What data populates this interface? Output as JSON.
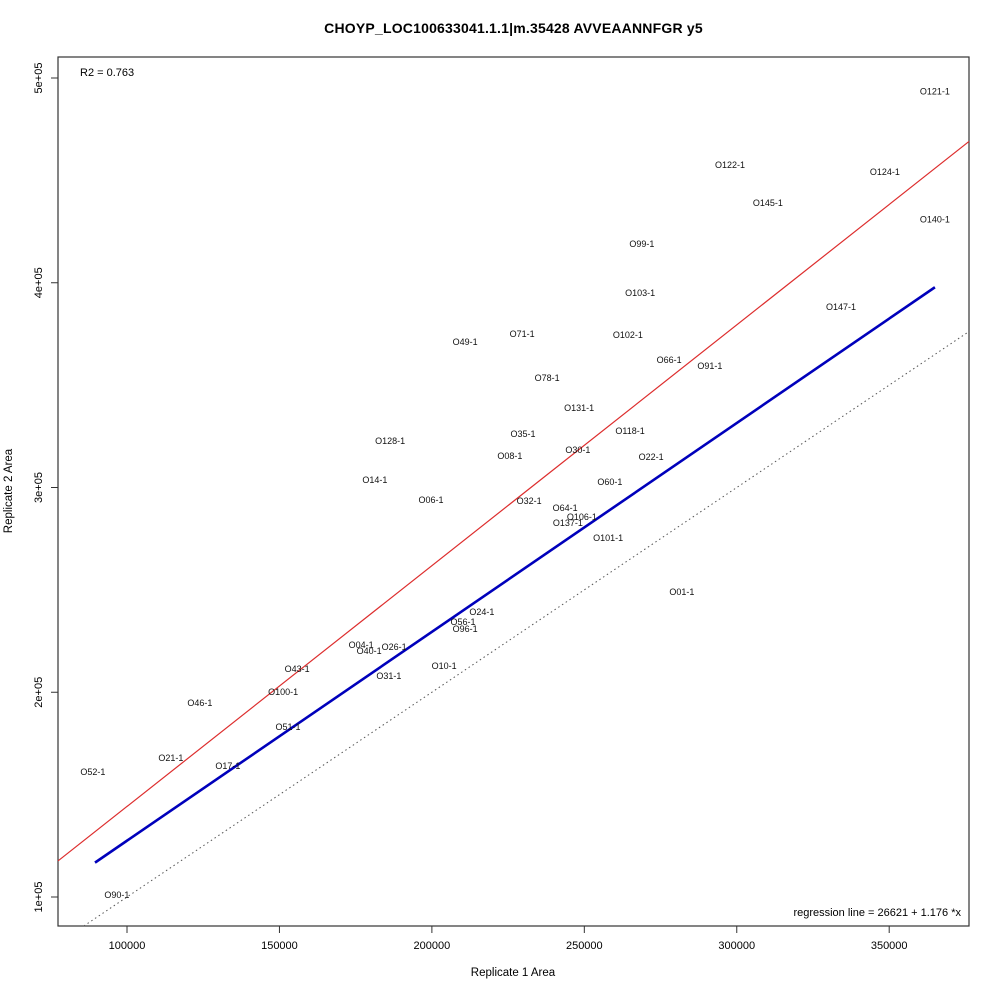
{
  "title": "CHOYP_LOC100633041.1.1|m.35428 AVVEAANNFGR y5",
  "annotations": {
    "r_squared": "R2 = 0.763",
    "regression_note": "regression line = 26621 + 1.176 *x"
  },
  "chart_data": {
    "type": "scatter",
    "title": "CHOYP_LOC100633041.1.1|m.35428 AVVEAANNFGR y5",
    "xlabel": "Replicate 1 Area",
    "ylabel": "Replicate 2 Area",
    "r2": 0.763,
    "regression": {
      "intercept": 26621,
      "slope": 1.176
    },
    "grid": false,
    "legend": "none",
    "xlim": [
      77366,
      376176
    ],
    "ylim": [
      85836,
      510256
    ],
    "x_ticks": {
      "values": [
        100000,
        150000,
        200000,
        250000,
        300000,
        350000
      ],
      "labels": [
        "100000",
        "150000",
        "200000",
        "250000",
        "300000",
        "350000"
      ]
    },
    "y_ticks": {
      "values": [
        100000,
        200000,
        300000,
        400000,
        500000
      ],
      "labels": [
        "1e+05",
        "2e+05",
        "3e+05",
        "4e+05",
        "5e+05"
      ]
    },
    "lines": [
      {
        "name": "regression-line",
        "color": "#dd2d2d",
        "style": "solid",
        "width": 1.2,
        "slope": 1.176,
        "intercept": 26621,
        "x_start": 77366,
        "x_end": 376176
      },
      {
        "name": "secondary-fit-line",
        "color": "#0000bb",
        "style": "solid",
        "width": 2.6,
        "slope": 1.02,
        "intercept": 25500,
        "x_start": 89500,
        "x_end": 365000
      },
      {
        "name": "identity-line",
        "color": "#555555",
        "style": "dotted",
        "width": 1,
        "slope": 1.0,
        "intercept": 0,
        "x_start": 85836,
        "x_end": 376176
      }
    ],
    "points": [
      {
        "label": "O121-1",
        "x": 365000,
        "y": 493500
      },
      {
        "label": "O122-1",
        "x": 297800,
        "y": 457500
      },
      {
        "label": "O124-1",
        "x": 348600,
        "y": 454000
      },
      {
        "label": "O145-1",
        "x": 310200,
        "y": 439000
      },
      {
        "label": "O140-1",
        "x": 365000,
        "y": 431000
      },
      {
        "label": "O99-1",
        "x": 268900,
        "y": 419000
      },
      {
        "label": "O103-1",
        "x": 268300,
        "y": 395000
      },
      {
        "label": "O147-1",
        "x": 334200,
        "y": 388200
      },
      {
        "label": "O102-1",
        "x": 264300,
        "y": 374500
      },
      {
        "label": "O71-1",
        "x": 229600,
        "y": 375000
      },
      {
        "label": "O49-1",
        "x": 210900,
        "y": 371000
      },
      {
        "label": "O66-1",
        "x": 277800,
        "y": 362300
      },
      {
        "label": "O91-1",
        "x": 291200,
        "y": 359300
      },
      {
        "label": "O78-1",
        "x": 237800,
        "y": 353500
      },
      {
        "label": "O131-1",
        "x": 248300,
        "y": 338800
      },
      {
        "label": "O118-1",
        "x": 265000,
        "y": 327600
      },
      {
        "label": "O35-1",
        "x": 229900,
        "y": 326100
      },
      {
        "label": "O128-1",
        "x": 186300,
        "y": 322700
      },
      {
        "label": "O30-1",
        "x": 247900,
        "y": 318300
      },
      {
        "label": "O08-1",
        "x": 225600,
        "y": 315400
      },
      {
        "label": "O22-1",
        "x": 271900,
        "y": 314900
      },
      {
        "label": "O14-1",
        "x": 181300,
        "y": 303700
      },
      {
        "label": "O60-1",
        "x": 258400,
        "y": 302700
      },
      {
        "label": "O06-1",
        "x": 199700,
        "y": 293900
      },
      {
        "label": "O32-1",
        "x": 231900,
        "y": 293400
      },
      {
        "label": "O64-1",
        "x": 243700,
        "y": 290000
      },
      {
        "label": "O106-1",
        "x": 249200,
        "y": 285600
      },
      {
        "label": "O137-1",
        "x": 244600,
        "y": 282700
      },
      {
        "label": "O101-1",
        "x": 257800,
        "y": 275300
      },
      {
        "label": "O01-1",
        "x": 282000,
        "y": 249000
      },
      {
        "label": "O24-1",
        "x": 216400,
        "y": 239200
      },
      {
        "label": "O56-1",
        "x": 210200,
        "y": 234300
      },
      {
        "label": "O96-1",
        "x": 210900,
        "y": 230900
      },
      {
        "label": "O04-1",
        "x": 176800,
        "y": 223100
      },
      {
        "label": "O26-1",
        "x": 187600,
        "y": 222100
      },
      {
        "label": "O40-1",
        "x": 179400,
        "y": 220100
      },
      {
        "label": "O10-1",
        "x": 204000,
        "y": 212800
      },
      {
        "label": "O43-1",
        "x": 155800,
        "y": 211400
      },
      {
        "label": "O31-1",
        "x": 185900,
        "y": 207900
      },
      {
        "label": "O100-1",
        "x": 151200,
        "y": 200100
      },
      {
        "label": "O46-1",
        "x": 123900,
        "y": 194800
      },
      {
        "label": "O51-1",
        "x": 152800,
        "y": 183000
      },
      {
        "label": "O21-1",
        "x": 114400,
        "y": 167900
      },
      {
        "label": "O17-1",
        "x": 133100,
        "y": 164000
      },
      {
        "label": "O52-1",
        "x": 88800,
        "y": 161100
      },
      {
        "label": "O90-1",
        "x": 96700,
        "y": 101000
      }
    ]
  }
}
